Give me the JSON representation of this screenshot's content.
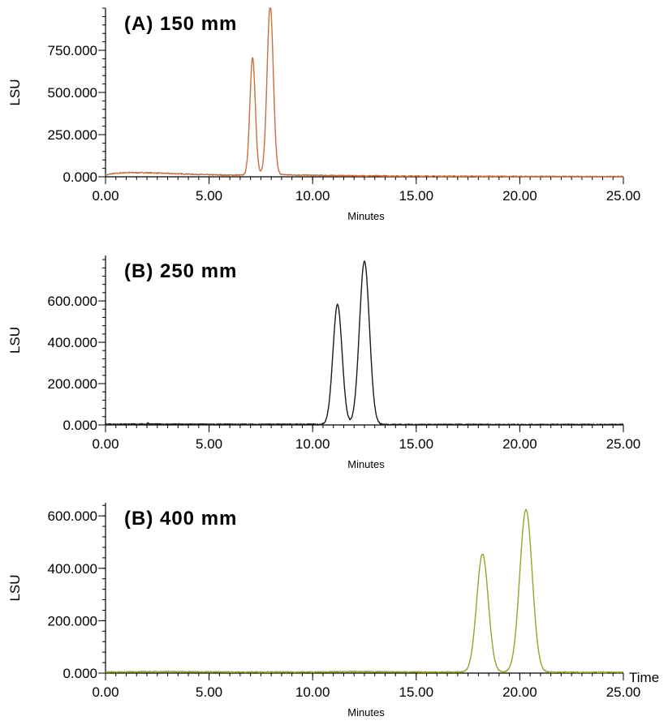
{
  "chart_data": [
    {
      "type": "line",
      "title": "(A) 150 mm",
      "xlabel": "Minutes",
      "ylabel": "LSU",
      "xlim": [
        0,
        25
      ],
      "ylim": [
        0,
        1000
      ],
      "x_ticks": [
        "0.00",
        "5.00",
        "10.00",
        "15.00",
        "20.00",
        "25.00"
      ],
      "y_ticks": [
        "0.000",
        "250.000",
        "500.000",
        "750.000"
      ],
      "y_tick_values": [
        0,
        250,
        500,
        750
      ],
      "grid": false,
      "color": "#C8703F",
      "baseline": [
        [
          0,
          10
        ],
        [
          0.3,
          18
        ],
        [
          1.0,
          25
        ],
        [
          2.0,
          24
        ],
        [
          3.0,
          20
        ],
        [
          4.0,
          16
        ],
        [
          5.0,
          12
        ],
        [
          6.0,
          10
        ],
        [
          6.6,
          10
        ],
        [
          7.5,
          20
        ],
        [
          8.5,
          13
        ],
        [
          9.0,
          11
        ],
        [
          10.0,
          9
        ],
        [
          12.0,
          6
        ],
        [
          15.0,
          4
        ],
        [
          20.0,
          2
        ],
        [
          25.0,
          1
        ]
      ],
      "peaks": [
        {
          "rt": 7.1,
          "height": 690,
          "sigma": 0.13
        },
        {
          "rt": 7.95,
          "height": 1000,
          "sigma": 0.15
        }
      ]
    },
    {
      "type": "line",
      "title": "(B) 250 mm",
      "xlabel": "Minutes",
      "ylabel": "LSU",
      "xlim": [
        0,
        25
      ],
      "ylim": [
        0,
        820
      ],
      "x_ticks": [
        "0.00",
        "5.00",
        "10.00",
        "15.00",
        "20.00",
        "25.00"
      ],
      "y_ticks": [
        "0.000",
        "200.000",
        "400.000",
        "600.000"
      ],
      "y_tick_values": [
        0,
        200,
        400,
        600
      ],
      "grid": false,
      "color": "#1A1A1A",
      "baseline": [
        [
          0,
          4
        ],
        [
          2.0,
          4
        ],
        [
          2.05,
          12
        ],
        [
          2.1,
          4
        ],
        [
          5.0,
          3
        ],
        [
          10.0,
          3
        ],
        [
          15.0,
          2
        ],
        [
          20.0,
          2
        ],
        [
          25.0,
          2
        ]
      ],
      "peaks": [
        {
          "rt": 11.2,
          "height": 580,
          "sigma": 0.22
        },
        {
          "rt": 12.5,
          "height": 790,
          "sigma": 0.24
        }
      ]
    },
    {
      "type": "line",
      "title": "(B) 400 mm",
      "xlabel": "Minutes",
      "ylabel": "LSU",
      "extra_label": "Time",
      "xlim": [
        0,
        25
      ],
      "ylim": [
        0,
        650
      ],
      "x_ticks": [
        "0.00",
        "5.00",
        "10.00",
        "15.00",
        "20.00",
        "25.00"
      ],
      "y_ticks": [
        "0.000",
        "200.000",
        "400.000",
        "600.000"
      ],
      "y_tick_values": [
        0,
        200,
        400,
        600
      ],
      "grid": false,
      "color": "#9AA32B",
      "baseline": [
        [
          0,
          4
        ],
        [
          3.0,
          6
        ],
        [
          6.0,
          4
        ],
        [
          10.0,
          4
        ],
        [
          12.0,
          6
        ],
        [
          15.0,
          4
        ],
        [
          20.0,
          4
        ],
        [
          25.0,
          3
        ]
      ],
      "peaks": [
        {
          "rt": 18.2,
          "height": 450,
          "sigma": 0.28
        },
        {
          "rt": 20.3,
          "height": 620,
          "sigma": 0.3
        }
      ]
    }
  ]
}
